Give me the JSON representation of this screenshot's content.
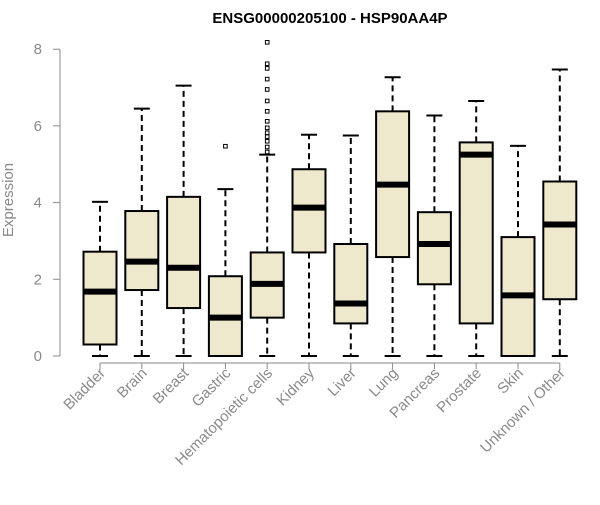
{
  "chart_data": {
    "type": "boxplot",
    "title": "ENSG00000205100 - HSP90AA4P",
    "xlabel": "",
    "ylabel": "Expression",
    "ylim": [
      0,
      8.2
    ],
    "yticks": [
      0,
      2,
      4,
      6,
      8
    ],
    "grid": false,
    "colors": {
      "box_fill": "#EEE8CD",
      "box_stroke": "#000000",
      "axis": "#8A8A8A",
      "label": "#8A8A8A",
      "title": "#000000"
    },
    "categories": [
      "Bladder",
      "Brain",
      "Breast",
      "Gastric",
      "Hematopoietic cells",
      "Kidney",
      "Liver",
      "Lung",
      "Pancreas",
      "Prostate",
      "Skin",
      "Unknown / Other"
    ],
    "boxes": [
      {
        "min": 0,
        "q1": 0.3,
        "median": 1.68,
        "q3": 2.72,
        "max": 4.02,
        "outliers": []
      },
      {
        "min": 0,
        "q1": 1.72,
        "median": 2.46,
        "q3": 3.78,
        "max": 6.45,
        "outliers": []
      },
      {
        "min": 0,
        "q1": 1.25,
        "median": 2.3,
        "q3": 4.15,
        "max": 7.05,
        "outliers": []
      },
      {
        "min": 0,
        "q1": 0,
        "median": 1.0,
        "q3": 2.08,
        "max": 4.35,
        "outliers": [
          5.47
        ]
      },
      {
        "min": 0,
        "q1": 1.0,
        "median": 1.88,
        "q3": 2.7,
        "max": 5.25,
        "outliers": [
          5.32,
          5.45,
          5.6,
          5.72,
          5.82,
          5.95,
          6.12,
          6.38,
          6.65,
          6.95,
          7.22,
          7.5,
          7.62,
          8.18
        ]
      },
      {
        "min": 0,
        "q1": 2.7,
        "median": 3.87,
        "q3": 4.87,
        "max": 5.77,
        "outliers": []
      },
      {
        "min": 0,
        "q1": 0.85,
        "median": 1.37,
        "q3": 2.92,
        "max": 5.75,
        "outliers": []
      },
      {
        "min": 0,
        "q1": 2.58,
        "median": 4.47,
        "q3": 6.38,
        "max": 7.27,
        "outliers": []
      },
      {
        "min": 0,
        "q1": 1.87,
        "median": 2.92,
        "q3": 3.75,
        "max": 6.27,
        "outliers": []
      },
      {
        "min": 0,
        "q1": 0.85,
        "median": 5.25,
        "q3": 5.57,
        "max": 6.65,
        "outliers": []
      },
      {
        "min": 0,
        "q1": 0,
        "median": 1.58,
        "q3": 3.1,
        "max": 5.48,
        "outliers": []
      },
      {
        "min": 0,
        "q1": 1.48,
        "median": 3.43,
        "q3": 4.55,
        "max": 7.47,
        "outliers": []
      }
    ]
  }
}
